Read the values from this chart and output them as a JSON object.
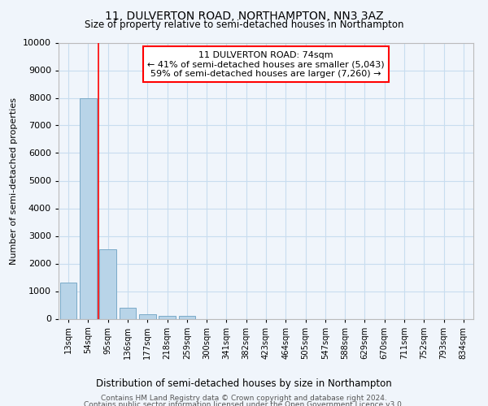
{
  "title": "11, DULVERTON ROAD, NORTHAMPTON, NN3 3AZ",
  "subtitle": "Size of property relative to semi-detached houses in Northampton",
  "xlabel_bottom": "Distribution of semi-detached houses by size in Northampton",
  "ylabel": "Number of semi-detached properties",
  "footer_line1": "Contains HM Land Registry data © Crown copyright and database right 2024.",
  "footer_line2": "Contains public sector information licensed under the Open Government Licence v3.0.",
  "categories": [
    "13sqm",
    "54sqm",
    "95sqm",
    "136sqm",
    "177sqm",
    "218sqm",
    "259sqm",
    "300sqm",
    "341sqm",
    "382sqm",
    "423sqm",
    "464sqm",
    "505sqm",
    "547sqm",
    "588sqm",
    "629sqm",
    "670sqm",
    "711sqm",
    "752sqm",
    "793sqm",
    "834sqm"
  ],
  "values": [
    1300,
    8000,
    2520,
    400,
    175,
    105,
    105,
    0,
    0,
    0,
    0,
    0,
    0,
    0,
    0,
    0,
    0,
    0,
    0,
    0,
    0
  ],
  "bar_color": "#b8d4e8",
  "bar_edge_color": "#7aaac8",
  "grid_color": "#c8ddef",
  "background_color": "#f0f5fb",
  "plot_bg_color": "#f0f5fb",
  "annotation_line1": "11 DULVERTON ROAD: 74sqm",
  "annotation_line2": "← 41% of semi-detached houses are smaller (5,043)",
  "annotation_line3": "59% of semi-detached houses are larger (7,260) →",
  "red_line_x": 1.5,
  "ylim": [
    0,
    10000
  ],
  "yticks": [
    0,
    1000,
    2000,
    3000,
    4000,
    5000,
    6000,
    7000,
    8000,
    9000,
    10000
  ]
}
